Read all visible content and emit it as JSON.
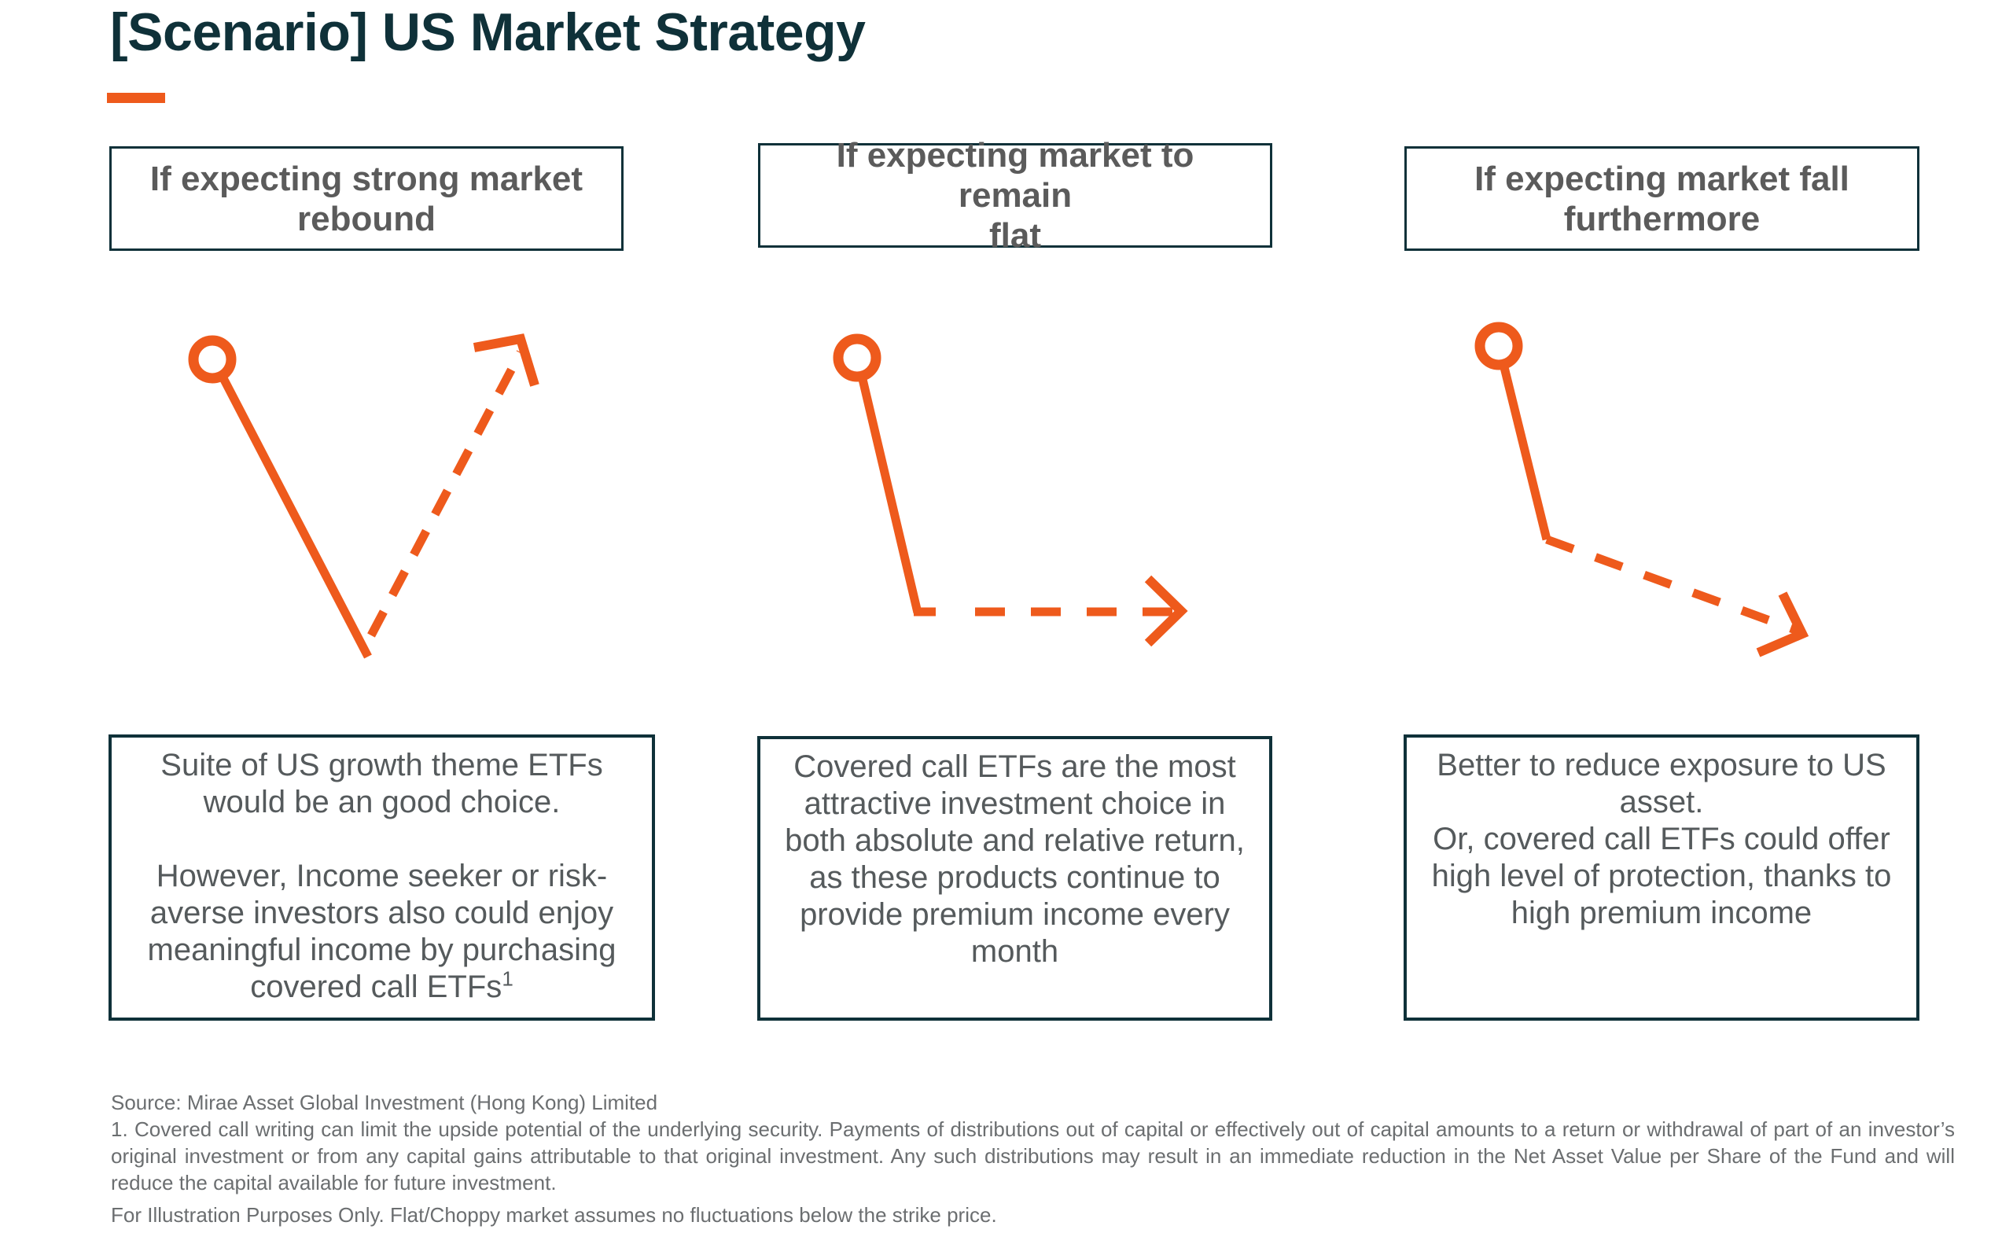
{
  "title": "[Scenario] US Market Strategy",
  "colors": {
    "accent": "#ee5a1c",
    "frame": "#0f3139",
    "text": "#555a5c"
  },
  "scenarios": [
    {
      "heading": [
        "If expecting strong market",
        "rebound"
      ],
      "arrow_icon": "v-shaped-rebound-arrow-icon",
      "body": {
        "paragraph_1": [
          "Suite of US growth theme ETFs",
          "would be an good choice."
        ],
        "paragraph_2": [
          "However, Income seeker or risk-",
          "averse investors also could enjoy",
          "meaningful income by purchasing",
          "covered call ETFs"
        ],
        "footnote_marker": "1"
      }
    },
    {
      "heading": [
        "If expecting market to remain",
        "flat"
      ],
      "arrow_icon": "drop-then-flat-arrow-icon",
      "body": {
        "lines": [
          "Covered call ETFs are the most",
          "attractive investment choice in",
          "both absolute and relative return,",
          "as these products continue to",
          "provide premium income every",
          "month"
        ]
      }
    },
    {
      "heading": [
        "If expecting market fall",
        "furthermore"
      ],
      "arrow_icon": "continued-decline-arrow-icon",
      "body": {
        "lines": [
          "Better to reduce exposure to US",
          "asset.",
          "Or, covered call ETFs could offer",
          "high level of protection, thanks to",
          "high premium income"
        ]
      }
    }
  ],
  "footer": {
    "source": "Source: Mirae Asset Global Investment (Hong Kong) Limited",
    "footnote_1": "1. Covered call writing can limit the upside potential of the underlying security. Payments of distributions out of capital or effectively out of capital amounts to a return or withdrawal of part of an investor’s original investment or from any capital gains attributable to that original investment. Any such distributions may result in an immediate reduction in the Net Asset Value per Share of the Fund and will reduce the capital available for future investment.",
    "disclaimer": "For Illustration Purposes Only. Flat/Choppy market assumes no fluctuations below the strike price."
  }
}
